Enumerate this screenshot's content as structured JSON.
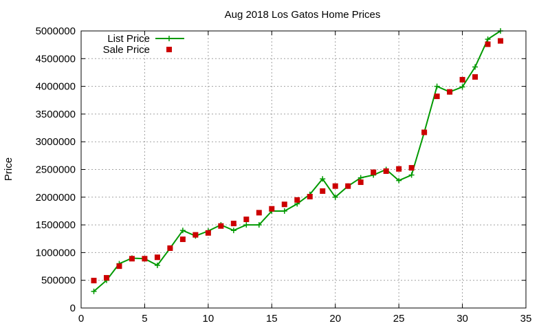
{
  "chart_data": {
    "type": "scatter",
    "title": "Aug 2018 Los Gatos Home Prices",
    "xlabel": "",
    "ylabel": "Price",
    "xlim": [
      0,
      35
    ],
    "ylim": [
      0,
      5000000
    ],
    "xticks": [
      0,
      5,
      10,
      15,
      20,
      25,
      30,
      35
    ],
    "yticks": [
      0,
      500000,
      1000000,
      1500000,
      2000000,
      2500000,
      3000000,
      3500000,
      4000000,
      4500000,
      5000000
    ],
    "grid": true,
    "legend": "top-left",
    "series": [
      {
        "name": "List Price",
        "style": "linespoints",
        "marker": "plus",
        "color": "#009900",
        "x": [
          1,
          2,
          3,
          4,
          5,
          6,
          7,
          8,
          9,
          10,
          11,
          12,
          13,
          14,
          15,
          16,
          17,
          18,
          19,
          20,
          21,
          22,
          23,
          24,
          25,
          26,
          27,
          28,
          29,
          30,
          31,
          32,
          33
        ],
        "y": [
          300000,
          500000,
          800000,
          900000,
          890000,
          770000,
          1080000,
          1400000,
          1300000,
          1390000,
          1500000,
          1400000,
          1500000,
          1500000,
          1750000,
          1750000,
          1880000,
          2050000,
          2330000,
          2000000,
          2200000,
          2350000,
          2400000,
          2500000,
          2300000,
          2400000,
          3170000,
          4000000,
          3900000,
          3990000,
          4350000,
          4850000,
          5000000
        ]
      },
      {
        "name": "Sale Price",
        "style": "points",
        "marker": "square",
        "color": "#cc0000",
        "x": [
          1,
          2,
          3,
          4,
          5,
          6,
          7,
          8,
          9,
          10,
          11,
          12,
          13,
          14,
          15,
          16,
          17,
          18,
          19,
          20,
          21,
          22,
          23,
          24,
          25,
          26,
          27,
          28,
          29,
          30,
          31,
          32,
          33
        ],
        "y": [
          495000,
          545000,
          755000,
          890000,
          890000,
          915000,
          1080000,
          1240000,
          1320000,
          1355000,
          1480000,
          1525000,
          1600000,
          1720000,
          1790000,
          1870000,
          1950000,
          2010000,
          2110000,
          2200000,
          2200000,
          2270000,
          2450000,
          2470000,
          2510000,
          2530000,
          3170000,
          3820000,
          3900000,
          4120000,
          4170000,
          4760000,
          4820000
        ]
      }
    ]
  }
}
